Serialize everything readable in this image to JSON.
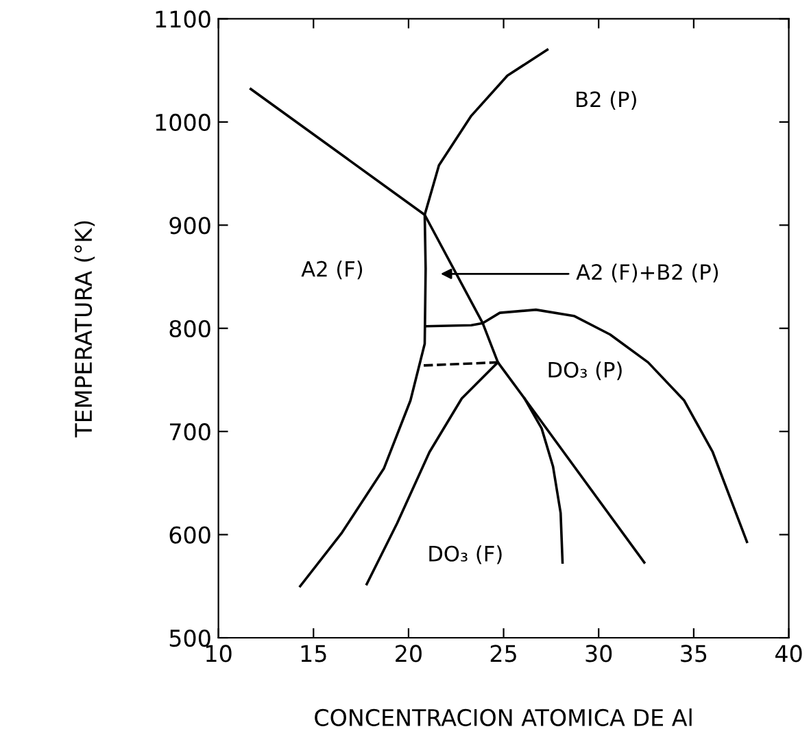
{
  "chart_data": {
    "type": "line",
    "xlabel": "CONCENTRACION ATOMICA DE Al",
    "ylabel": "TEMPERATURA (°K)",
    "xlim": [
      10,
      40
    ],
    "xticks": [
      10,
      15,
      20,
      25,
      30,
      35,
      40
    ],
    "ylim": [
      500,
      1100
    ],
    "yticks": [
      500,
      600,
      700,
      800,
      900,
      1000,
      1100
    ],
    "grid": false,
    "legend": false,
    "marker": "none",
    "series": [
      {
        "color": "#000000",
        "x": [
          11.7,
          20.85,
          23.9,
          24.7,
          26.1,
          32.4
        ],
        "values": [
          1032,
          910,
          805,
          767,
          732,
          573
        ]
      },
      {
        "color": "#000000",
        "x": [
          14.3,
          16.5,
          18.7,
          20.1,
          20.85,
          20.9,
          20.85,
          21.6,
          23.3,
          25.2,
          27.3
        ],
        "values": [
          550,
          602,
          664,
          730,
          785,
          858,
          910,
          958,
          1006,
          1045,
          1070
        ]
      },
      {
        "color": "#000000",
        "x": [
          20.9,
          23.3,
          23.9,
          24.8,
          26.7,
          28.7,
          30.6,
          32.6,
          34.5,
          36.0,
          37.8
        ],
        "values": [
          802,
          803,
          805,
          815,
          818,
          812,
          794,
          767,
          730,
          680,
          593
        ]
      },
      {
        "color": "#000000",
        "line_style": "dashed",
        "x": [
          20.8,
          24.7
        ],
        "values": [
          764,
          767
        ]
      },
      {
        "color": "#000000",
        "x": [
          17.8,
          19.4,
          21.1,
          22.8,
          24.7
        ],
        "values": [
          552,
          611,
          680,
          732,
          767
        ]
      },
      {
        "color": "#000000",
        "x": [
          26.1,
          27.0,
          27.6,
          28.0,
          28.1
        ],
        "values": [
          732,
          703,
          666,
          621,
          573
        ]
      }
    ],
    "annotations": [
      "B2 (P)",
      "A2 (F)",
      "A2 (F)+B2 (P)",
      "DO₃ (P)",
      "DO₃ (F)"
    ]
  }
}
